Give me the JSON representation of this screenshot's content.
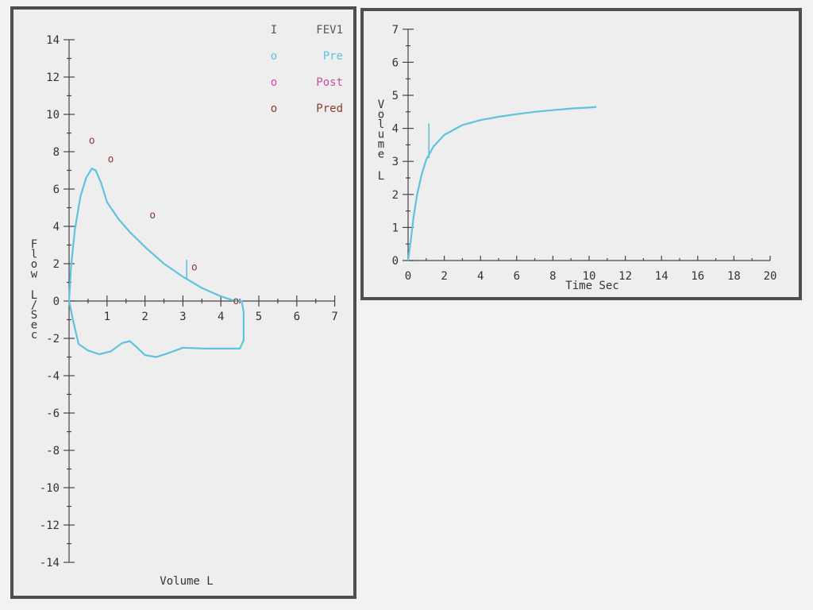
{
  "colors": {
    "pre": "#5ec3dc",
    "post": "#d24aa0",
    "pred": "#8e3a34",
    "fev1": "#555555",
    "axis": "#444444"
  },
  "chart_data": [
    {
      "type": "line",
      "name": "flow-volume",
      "xlabel": "Volume L",
      "ylabel": "Flow L/Sec",
      "xlim": [
        0,
        7
      ],
      "ylim": [
        -14,
        14
      ],
      "xticks": [
        1,
        2,
        3,
        4,
        5,
        6,
        7
      ],
      "xtick_labels": [
        "1",
        "2",
        "3",
        "4",
        "5",
        "6",
        "7"
      ],
      "yticks": [
        14,
        12,
        10,
        8,
        6,
        4,
        2,
        0,
        -2,
        -4,
        -6,
        -8,
        -10,
        -12,
        -14
      ],
      "ytick_labels": [
        "14",
        "12",
        "10",
        "8",
        "6",
        "4",
        "2",
        "0",
        "-2",
        "-4",
        "-6",
        "-8",
        "-10",
        "-12",
        "-14"
      ],
      "legend": [
        {
          "symbol": "I",
          "label": "FEV1",
          "color_key": "fev1"
        },
        {
          "symbol": "o",
          "label": "Pre",
          "color_key": "pre"
        },
        {
          "symbol": "o",
          "label": "Post",
          "color_key": "post"
        },
        {
          "symbol": "o",
          "label": "Pred",
          "color_key": "pred"
        }
      ],
      "legend_position": "top-right",
      "series": [
        {
          "color_key": "pre",
          "points": [
            [
              0,
              0
            ],
            [
              0.05,
              1.8
            ],
            [
              0.15,
              3.8
            ],
            [
              0.3,
              5.6
            ],
            [
              0.45,
              6.6
            ],
            [
              0.6,
              7.1
            ],
            [
              0.7,
              7.0
            ],
            [
              0.85,
              6.3
            ],
            [
              1.0,
              5.3
            ],
            [
              1.3,
              4.4
            ],
            [
              1.6,
              3.7
            ],
            [
              2.0,
              2.9
            ],
            [
              2.5,
              2.0
            ],
            [
              3.0,
              1.3
            ],
            [
              3.5,
              0.7
            ],
            [
              4.0,
              0.25
            ],
            [
              4.3,
              0.05
            ],
            [
              4.55,
              0
            ],
            [
              4.6,
              -0.6
            ],
            [
              4.6,
              -1.5
            ],
            [
              4.6,
              -2.1
            ],
            [
              4.5,
              -2.55
            ],
            [
              4.2,
              -2.55
            ],
            [
              3.6,
              -2.55
            ],
            [
              3.0,
              -2.5
            ],
            [
              2.6,
              -2.8
            ],
            [
              2.3,
              -3.0
            ],
            [
              2.0,
              -2.9
            ],
            [
              1.8,
              -2.5
            ],
            [
              1.6,
              -2.15
            ],
            [
              1.4,
              -2.25
            ],
            [
              1.1,
              -2.7
            ],
            [
              0.8,
              -2.85
            ],
            [
              0.5,
              -2.65
            ],
            [
              0.25,
              -2.3
            ],
            [
              0.1,
              -1.0
            ],
            [
              0,
              0
            ]
          ]
        }
      ],
      "pred_points": [
        [
          0.6,
          8.6
        ],
        [
          1.1,
          7.6
        ],
        [
          2.2,
          4.6
        ],
        [
          3.3,
          1.8
        ],
        [
          4.4,
          0
        ]
      ],
      "fev1_marker": {
        "x": 3.1,
        "y_from": 1.2,
        "y_to": 2.2
      }
    },
    {
      "type": "line",
      "name": "volume-time",
      "xlabel": "Time Sec",
      "ylabel": "Volume L",
      "xlim": [
        0,
        20
      ],
      "ylim": [
        0,
        7
      ],
      "xticks": [
        0,
        2,
        4,
        6,
        8,
        10,
        12,
        14,
        16,
        18,
        20
      ],
      "xtick_labels": [
        "0",
        "2",
        "4",
        "6",
        "8",
        "10",
        "12",
        "14",
        "16",
        "18",
        "20"
      ],
      "yticks": [
        0,
        1,
        2,
        3,
        4,
        5,
        6,
        7
      ],
      "ytick_labels": [
        "0",
        "1",
        "2",
        "3",
        "4",
        "5",
        "6",
        "7"
      ],
      "series": [
        {
          "color_key": "pre",
          "points": [
            [
              0,
              0
            ],
            [
              0.15,
              0.6
            ],
            [
              0.3,
              1.3
            ],
            [
              0.5,
              2.0
            ],
            [
              0.75,
              2.6
            ],
            [
              1.0,
              3.05
            ],
            [
              1.4,
              3.45
            ],
            [
              2.0,
              3.8
            ],
            [
              3.0,
              4.1
            ],
            [
              4.0,
              4.25
            ],
            [
              5.0,
              4.35
            ],
            [
              6.0,
              4.43
            ],
            [
              7.0,
              4.5
            ],
            [
              8.0,
              4.55
            ],
            [
              9.0,
              4.6
            ],
            [
              10.0,
              4.63
            ],
            [
              10.4,
              4.65
            ]
          ]
        }
      ],
      "fev1_marker": {
        "x": 1.15,
        "y_from": 3.1,
        "y_to": 4.15
      }
    }
  ]
}
